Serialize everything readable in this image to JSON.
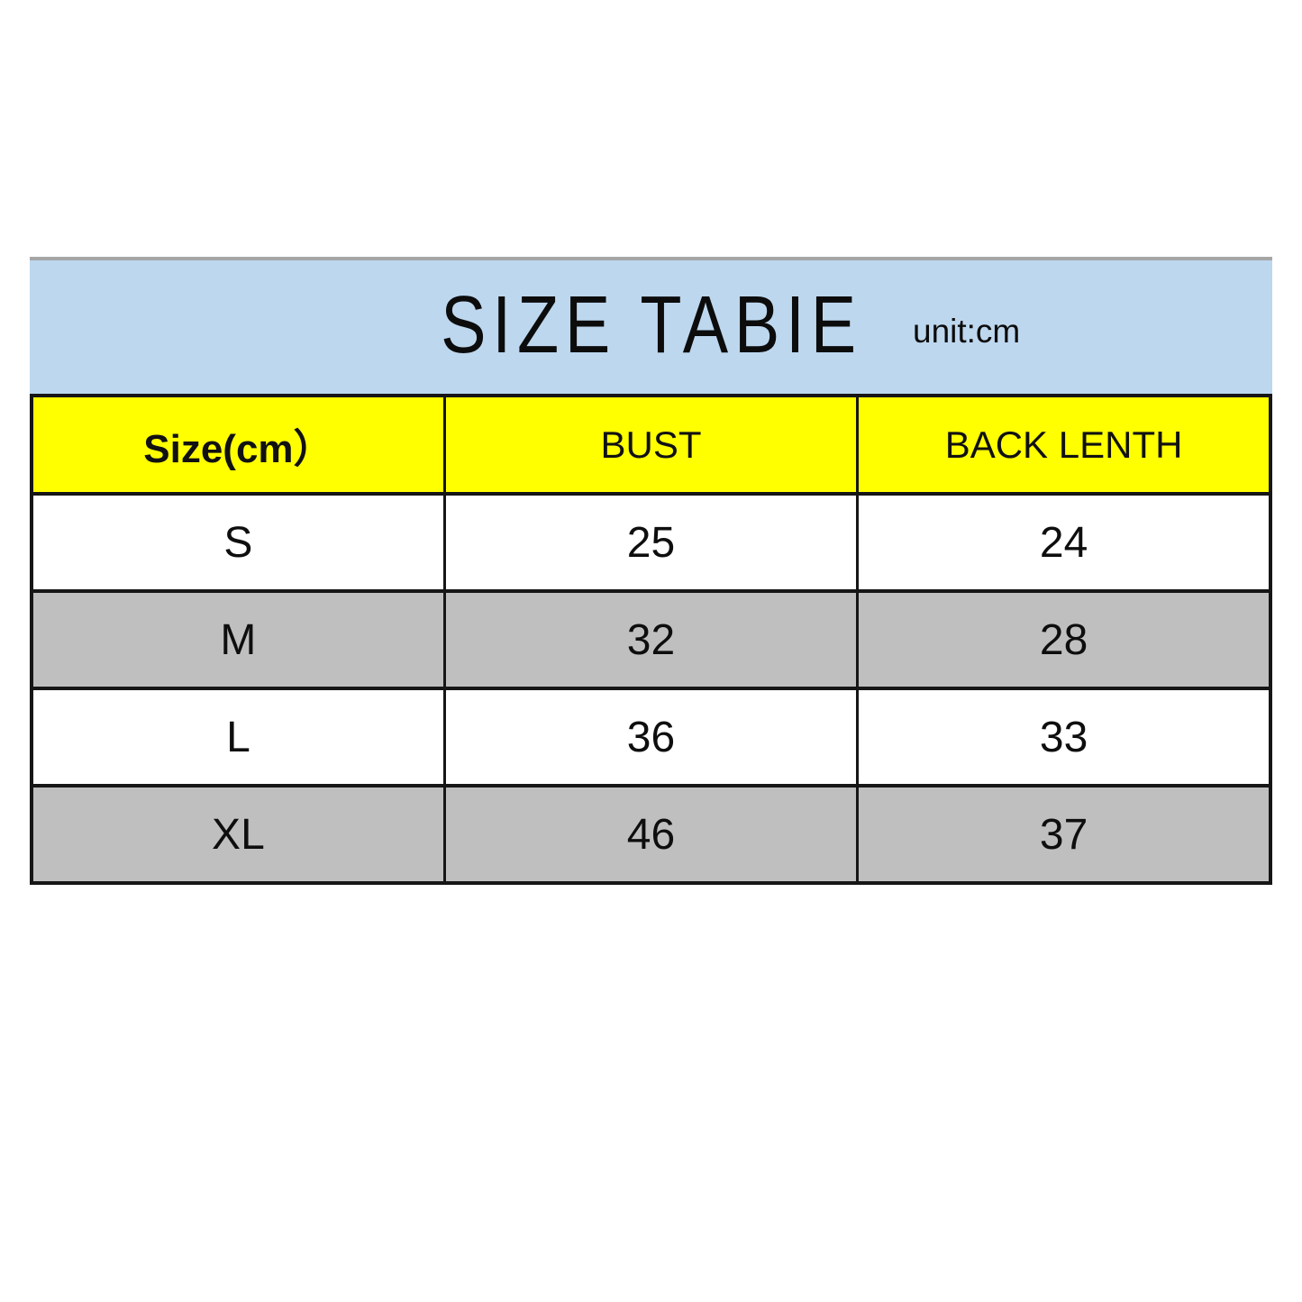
{
  "header": {
    "title": "SIZE TABIE",
    "unit_label": "unit:cm"
  },
  "chart_data": {
    "type": "table",
    "title": "SIZE TABIE",
    "unit": "cm",
    "columns": [
      "Size(cm）",
      "BUST",
      "BACK LENTH"
    ],
    "rows": [
      {
        "size": "S",
        "bust": "25",
        "back_length": "24"
      },
      {
        "size": "M",
        "bust": "32",
        "back_length": "28"
      },
      {
        "size": "L",
        "bust": "36",
        "back_length": "33"
      },
      {
        "size": "XL",
        "bust": "46",
        "back_length": "37"
      }
    ]
  },
  "colors": {
    "title_band_bg": "#bdd7ee",
    "column_header_bg": "#ffff00",
    "row_bg": "#ffffff",
    "row_alt_bg": "#bfbfbf",
    "border": "#161616",
    "top_strip": "#a6a6a6",
    "text": "#0c0c0c"
  }
}
